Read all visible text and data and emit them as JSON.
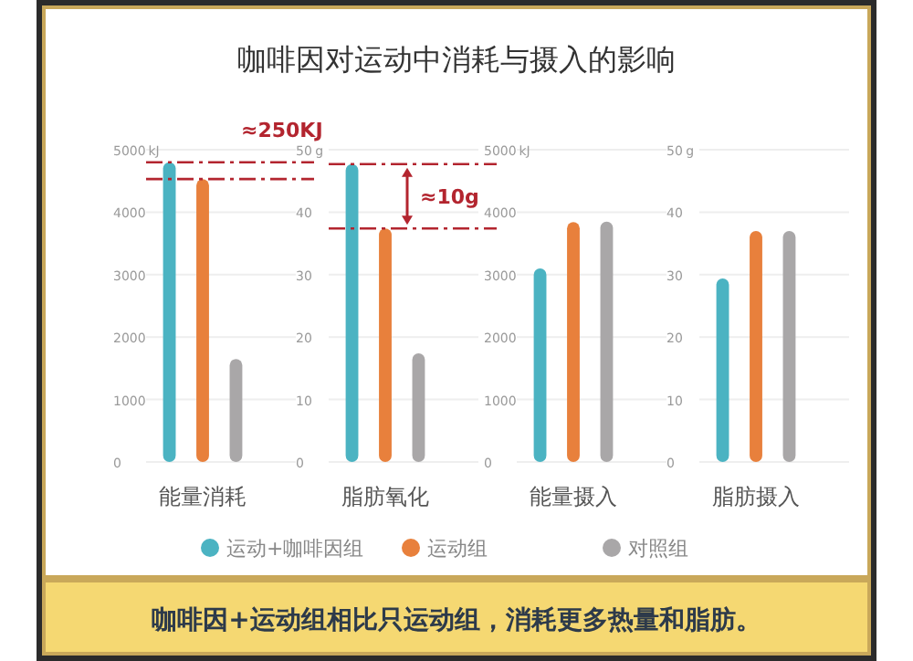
{
  "chart_data": [
    {
      "type": "bar",
      "title": "咖啡因对运动中消耗与摄入的影响",
      "categories": [
        "能量消耗"
      ],
      "ylabel": "kJ",
      "ylim": [
        0,
        5000
      ],
      "yticks": [
        0,
        1000,
        2000,
        3000,
        4000,
        5000
      ],
      "grid": "y",
      "legend": "bottom",
      "series": [
        {
          "name": "运动+咖啡因组",
          "color": "#4bb3c2",
          "values": [
            4800
          ]
        },
        {
          "name": "运动组",
          "color": "#e8803c",
          "values": [
            4530
          ]
        },
        {
          "name": "对照组",
          "color": "#a9a7a8",
          "values": [
            1650
          ]
        }
      ],
      "ref_lines": [
        {
          "axis": "y",
          "value": 4800,
          "label": "≈250KJ",
          "color": "#b3252f",
          "line_style": "dashdot"
        },
        {
          "axis": "y",
          "value": 4530,
          "label": null,
          "color": "#b3252f",
          "line_style": "dashdot"
        }
      ],
      "annotations": [
        "咖啡因+运动组相比只运动组，消耗更多热量和脂肪。"
      ]
    },
    {
      "type": "bar",
      "categories": [
        "脂肪氧化"
      ],
      "ylabel": "g",
      "ylim": [
        0,
        50
      ],
      "yticks": [
        0,
        10,
        20,
        30,
        40,
        50
      ],
      "grid": "y",
      "series": [
        {
          "color": "#4bb3c2",
          "values": [
            47.7
          ]
        },
        {
          "color": "#e8803c",
          "values": [
            37.4
          ]
        },
        {
          "color": "#a9a7a8",
          "values": [
            17.4
          ]
        }
      ],
      "ref_lines": [
        {
          "axis": "y",
          "value": 47.7,
          "label": null,
          "color": "#b3252f",
          "line_style": "dashdot"
        },
        {
          "axis": "y",
          "value": 37.4,
          "label": "≈10g",
          "color": "#b3252f",
          "line_style": "dashdot"
        }
      ]
    },
    {
      "type": "bar",
      "categories": [
        "能量摄入"
      ],
      "ylabel": "kJ",
      "ylim": [
        0,
        5000
      ],
      "yticks": [
        0,
        1000,
        2000,
        3000,
        4000,
        5000
      ],
      "grid": "y",
      "series": [
        {
          "color": "#4bb3c2",
          "values": [
            3100
          ]
        },
        {
          "color": "#e8803c",
          "values": [
            3840
          ]
        },
        {
          "color": "#a9a7a8",
          "values": [
            3850
          ]
        }
      ]
    },
    {
      "type": "bar",
      "categories": [
        "脂肪摄入"
      ],
      "ylabel": "g",
      "ylim": [
        0,
        50
      ],
      "yticks": [
        0,
        10,
        20,
        30,
        40,
        50
      ],
      "grid": "y",
      "series": [
        {
          "color": "#4bb3c2",
          "values": [
            29.4
          ]
        },
        {
          "color": "#e8803c",
          "values": [
            37
          ]
        },
        {
          "color": "#a9a7a8",
          "values": [
            37
          ]
        }
      ]
    }
  ]
}
